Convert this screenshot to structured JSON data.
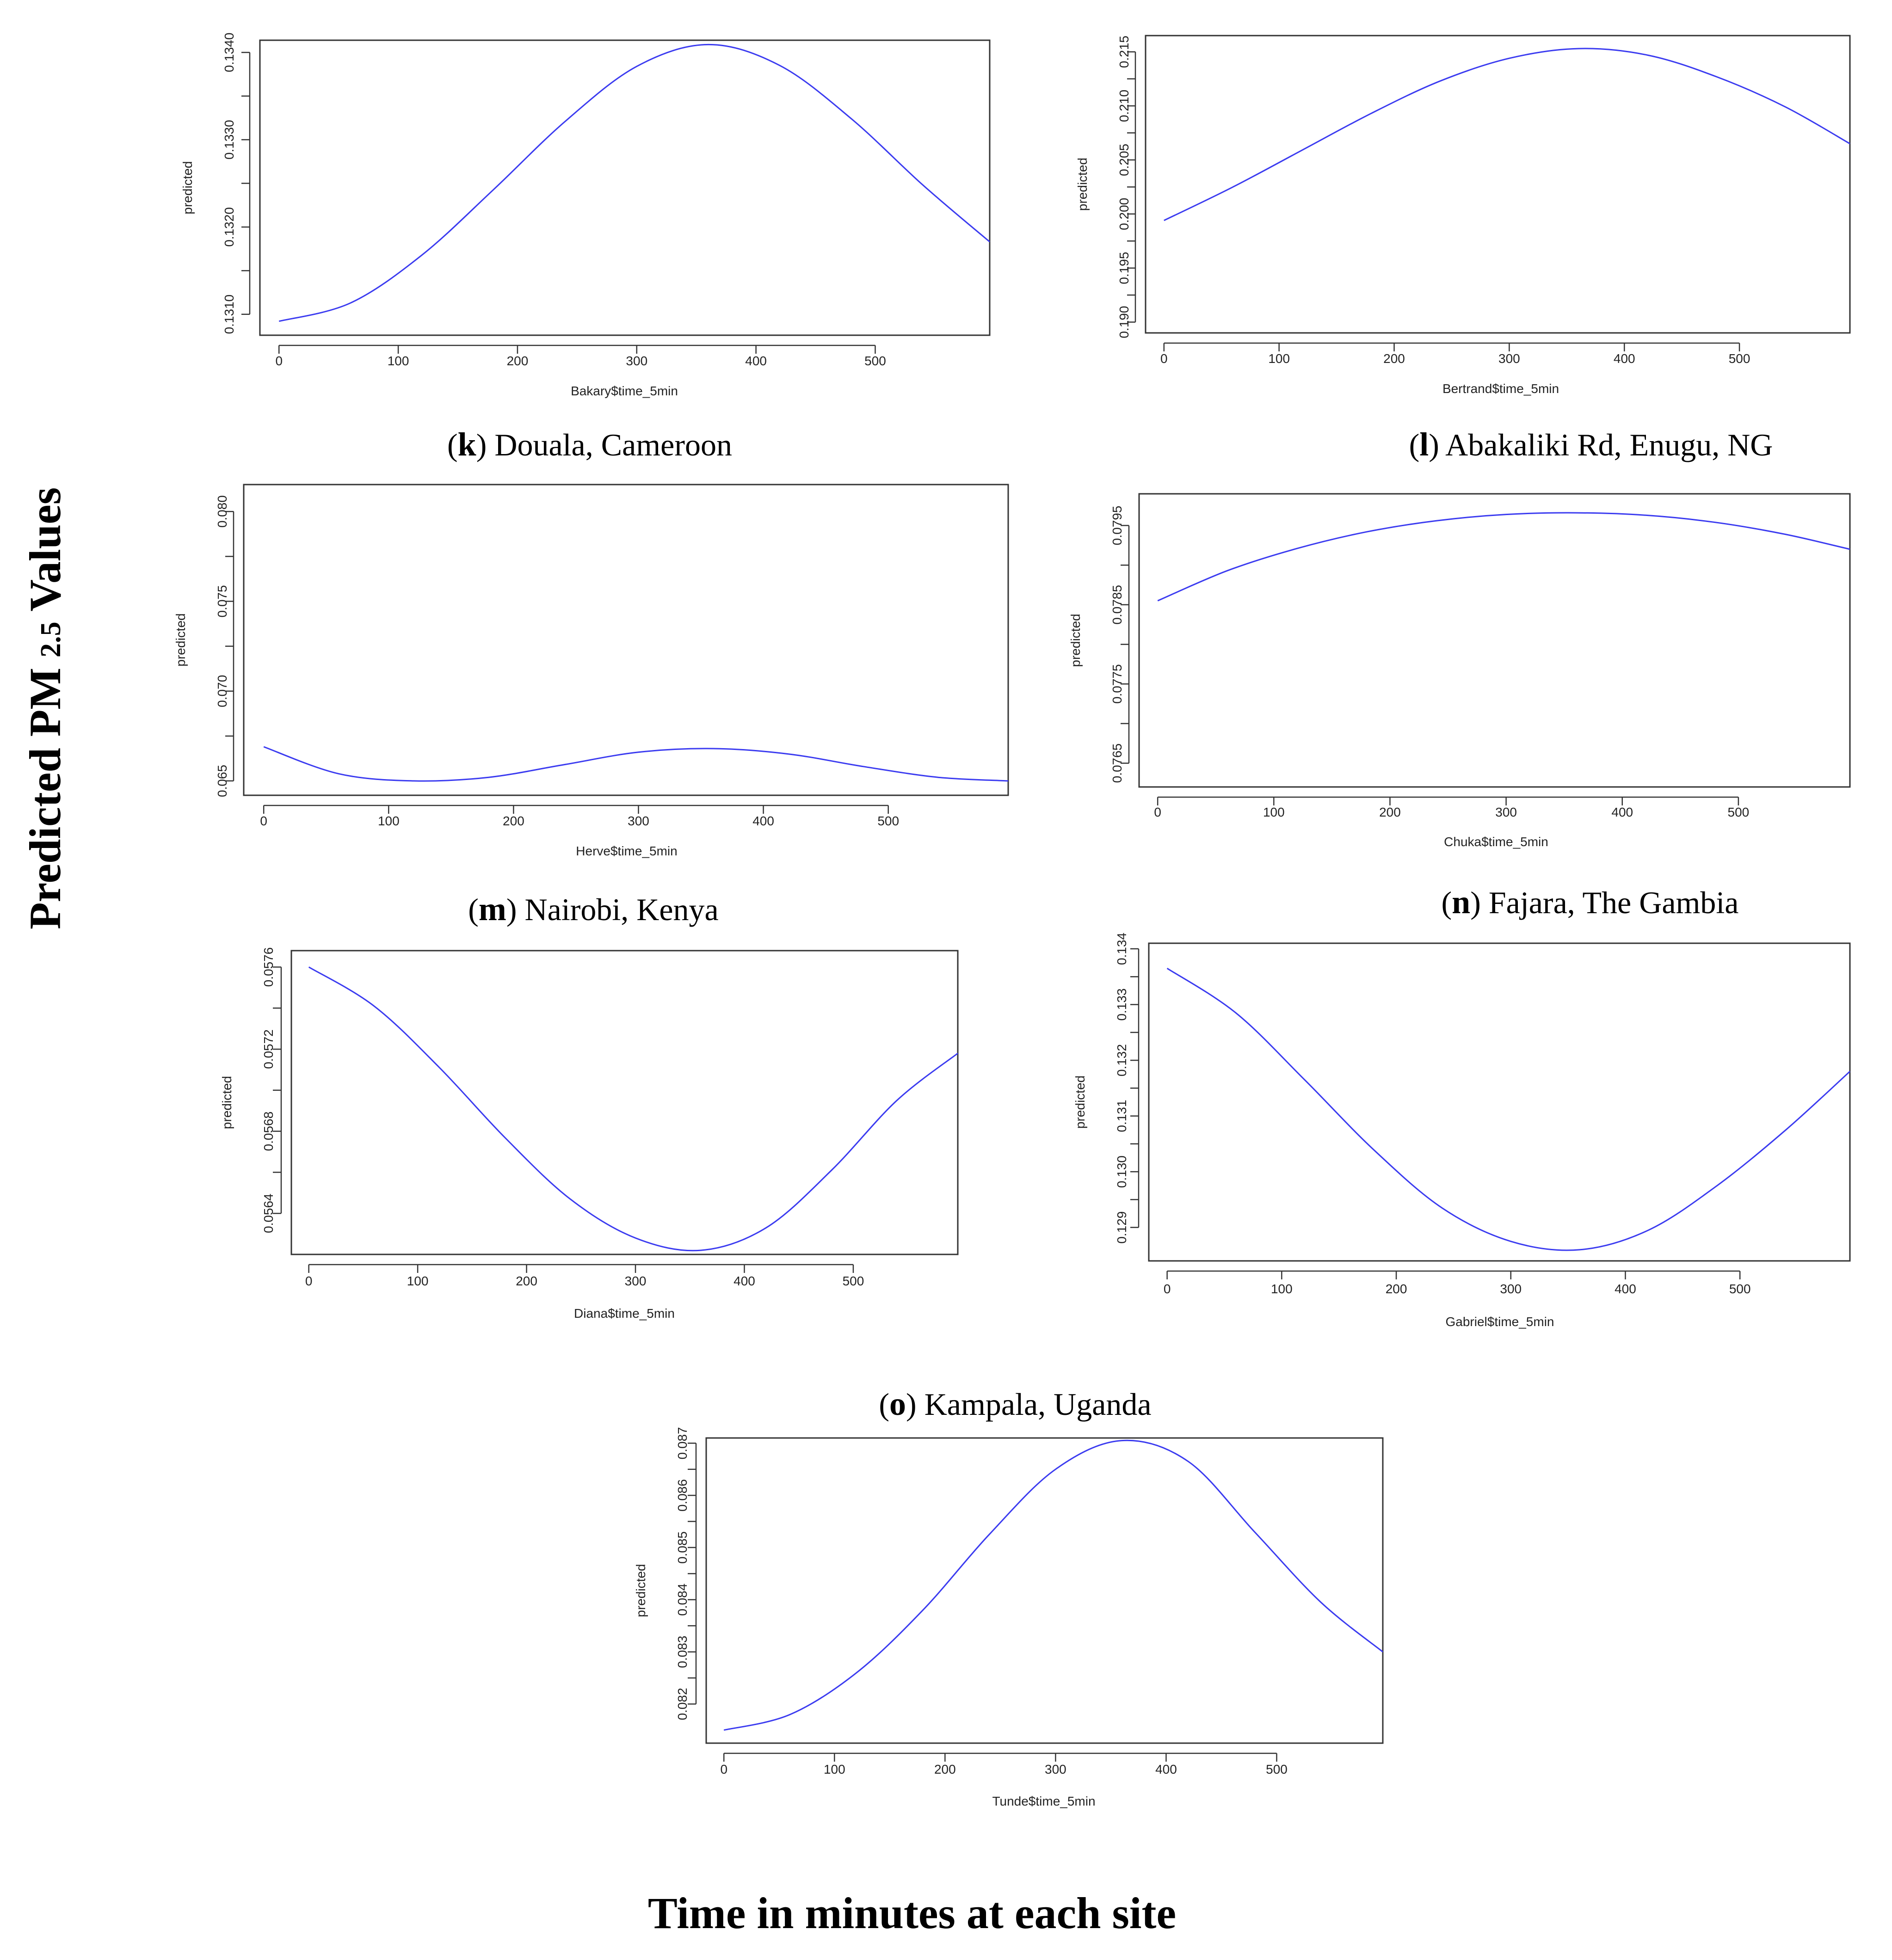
{
  "figure": {
    "y_title": "Predicted PM",
    "y_title_sub": "2.5",
    "y_title_tail": "Values",
    "x_title": "Time in minutes at each site",
    "line_color": "#3b3bf0"
  },
  "chart_data": [
    {
      "id": "k",
      "type": "line",
      "caption_letter": "k",
      "caption": "Douala, Cameroon",
      "xlabel": "Bakary$time_5min",
      "ylabel": "predicted",
      "xlim": [
        -16,
        596
      ],
      "ylim": [
        0.13076,
        0.13414
      ],
      "xticks": [
        0,
        100,
        200,
        300,
        400,
        500
      ],
      "yticks": [
        0.131,
        0.132,
        0.133,
        0.134
      ],
      "ytick_labels": [
        "0.1310",
        "0.1320",
        "0.1330",
        "0.1340"
      ],
      "x": [
        0,
        60,
        120,
        180,
        240,
        300,
        360,
        420,
        480,
        540,
        596
      ],
      "y": [
        0.13092,
        0.13113,
        0.13168,
        0.13243,
        0.13321,
        0.13384,
        0.13409,
        0.13385,
        0.13324,
        0.13248,
        0.13183
      ]
    },
    {
      "id": "l",
      "type": "line",
      "caption_letter": "l",
      "caption": "Abakaliki Rd, Enugu, NG",
      "xlabel": "Bertrand$time_5min",
      "ylabel": "predicted",
      "xlim": [
        -16,
        596
      ],
      "ylim": [
        0.189,
        0.2165
      ],
      "xticks": [
        0,
        100,
        200,
        300,
        400,
        500
      ],
      "yticks": [
        0.19,
        0.195,
        0.2,
        0.205,
        0.21,
        0.215
      ],
      "ytick_labels": [
        "0.190",
        "0.195",
        "0.200",
        "0.205",
        "0.210",
        "0.215"
      ],
      "x": [
        0,
        60,
        120,
        180,
        240,
        300,
        360,
        420,
        480,
        540,
        596
      ],
      "y": [
        0.1994,
        0.2025,
        0.2059,
        0.2093,
        0.2123,
        0.2144,
        0.2153,
        0.2147,
        0.2127,
        0.2099,
        0.2065
      ]
    },
    {
      "id": "m",
      "type": "line",
      "caption_letter": "m",
      "caption": "Nairobi, Kenya",
      "xlabel": "Herve$time_5min",
      "ylabel": "predicted",
      "xlim": [
        -16,
        596
      ],
      "ylim": [
        0.0642,
        0.0815
      ],
      "xticks": [
        0,
        100,
        200,
        300,
        400,
        500
      ],
      "yticks": [
        0.065,
        0.07,
        0.075,
        0.08
      ],
      "ytick_labels": [
        "0.065",
        "0.070",
        "0.075",
        "0.080"
      ],
      "x": [
        0,
        60,
        120,
        180,
        240,
        300,
        360,
        420,
        480,
        540,
        596
      ],
      "y": [
        0.0669,
        0.0654,
        0.065,
        0.0652,
        0.0659,
        0.0666,
        0.0668,
        0.0665,
        0.0658,
        0.0652,
        0.065
      ]
    },
    {
      "id": "n",
      "type": "line",
      "caption_letter": "n",
      "caption": "Fajara, The Gambia",
      "xlabel": "Chuka$time_5min",
      "ylabel": "predicted",
      "xlim": [
        -16,
        596
      ],
      "ylim": [
        0.0762,
        0.0799
      ],
      "xticks": [
        0,
        100,
        200,
        300,
        400,
        500
      ],
      "yticks": [
        0.0765,
        0.0775,
        0.0785,
        0.0795
      ],
      "ytick_labels": [
        "0.0765",
        "0.0775",
        "0.0785",
        "0.0795"
      ],
      "x": [
        0,
        60,
        120,
        180,
        240,
        300,
        360,
        420,
        480,
        540,
        596
      ],
      "y": [
        0.07855,
        0.07893,
        0.07921,
        0.07942,
        0.07956,
        0.07964,
        0.07966,
        0.07963,
        0.07954,
        0.07939,
        0.0792
      ]
    },
    {
      "id": "o1",
      "type": "line",
      "caption_letter": "o",
      "caption": "Kampala, Uganda",
      "xlabel": "Diana$time_5min",
      "ylabel": "predicted",
      "xlim": [
        -16,
        596
      ],
      "ylim": [
        0.0562,
        0.05768
      ],
      "xticks": [
        0,
        100,
        200,
        300,
        400,
        500
      ],
      "yticks": [
        0.0564,
        0.0568,
        0.0572,
        0.0576
      ],
      "ytick_labels": [
        "0.0564",
        "0.0568",
        "0.0572",
        "0.0576"
      ],
      "x": [
        0,
        60,
        120,
        180,
        240,
        300,
        360,
        420,
        480,
        540,
        596
      ],
      "y": [
        0.0576,
        0.05741,
        0.05711,
        0.05677,
        0.05647,
        0.05628,
        0.05622,
        0.05633,
        0.05661,
        0.05695,
        0.05718
      ]
    },
    {
      "id": "o2",
      "type": "line",
      "xlabel": "Gabriel$time_5min",
      "ylabel": "predicted",
      "xlim": [
        -16,
        596
      ],
      "ylim": [
        0.1284,
        0.1341
      ],
      "xticks": [
        0,
        100,
        200,
        300,
        400,
        500
      ],
      "yticks": [
        0.129,
        0.13,
        0.131,
        0.132,
        0.133,
        0.134
      ],
      "ytick_labels": [
        "0.129",
        "0.130",
        "0.131",
        "0.132",
        "0.133",
        "0.134"
      ],
      "x": [
        0,
        60,
        120,
        180,
        240,
        300,
        360,
        420,
        480,
        540,
        596
      ],
      "y": [
        0.13365,
        0.13285,
        0.13165,
        0.1304,
        0.12935,
        0.12875,
        0.1286,
        0.12895,
        0.12975,
        0.13075,
        0.1318
      ]
    },
    {
      "id": "o3",
      "type": "line",
      "xlabel": "Tunde$time_5min",
      "ylabel": "predicted",
      "xlim": [
        -16,
        596
      ],
      "ylim": [
        0.08125,
        0.0871
      ],
      "xticks": [
        0,
        100,
        200,
        300,
        400,
        500
      ],
      "yticks": [
        0.082,
        0.083,
        0.084,
        0.085,
        0.086,
        0.087
      ],
      "ytick_labels": [
        "0.082",
        "0.083",
        "0.084",
        "0.085",
        "0.086",
        "0.087"
      ],
      "x": [
        0,
        60,
        120,
        180,
        240,
        300,
        360,
        420,
        480,
        540,
        596
      ],
      "y": [
        0.0815,
        0.0818,
        0.0826,
        0.0838,
        0.08525,
        0.0865,
        0.08705,
        0.08665,
        0.0853,
        0.08395,
        0.083
      ]
    }
  ]
}
